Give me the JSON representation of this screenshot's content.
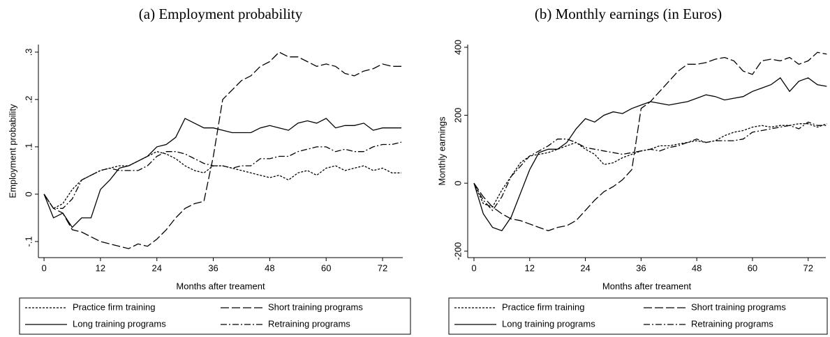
{
  "chart_data": [
    {
      "type": "line",
      "title": "(a) Employment probability",
      "x_label": "Months after treament",
      "y_label": "Employment probability",
      "x": [
        0,
        2,
        4,
        6,
        8,
        10,
        12,
        14,
        16,
        18,
        20,
        22,
        24,
        26,
        28,
        30,
        32,
        34,
        36,
        38,
        40,
        42,
        44,
        46,
        48,
        50,
        52,
        54,
        56,
        58,
        60,
        62,
        64,
        66,
        68,
        70,
        72,
        74,
        76
      ],
      "xlim": [
        -1.2,
        76.3
      ],
      "xticks": [
        0,
        12,
        24,
        36,
        48,
        60,
        72
      ],
      "ylim": [
        -0.134,
        0.316
      ],
      "yticks": [
        {
          "value": -0.1,
          "label": "-.1"
        },
        0,
        {
          "value": 0.1,
          "label": ".1"
        },
        {
          "value": 0.2,
          "label": ".2"
        },
        {
          "value": 0.3,
          "label": ".3"
        }
      ],
      "series": [
        {
          "name": "Practice firm training",
          "color": "#000000",
          "dash": "3,2",
          "values": [
            0,
            -0.03,
            -0.02,
            0.01,
            0.03,
            0.04,
            0.05,
            0.055,
            0.06,
            0.06,
            0.07,
            0.08,
            0.09,
            0.085,
            0.075,
            0.06,
            0.05,
            0.045,
            0.06,
            0.06,
            0.055,
            0.05,
            0.045,
            0.04,
            0.035,
            0.04,
            0.03,
            0.045,
            0.05,
            0.04,
            0.055,
            0.06,
            0.05,
            0.055,
            0.06,
            0.05,
            0.055,
            0.045,
            0.045
          ]
        },
        {
          "name": "Short training programs",
          "color": "#000000",
          "dash": "12,4",
          "values": [
            0,
            -0.03,
            -0.04,
            -0.075,
            -0.08,
            -0.09,
            -0.1,
            -0.105,
            -0.11,
            -0.115,
            -0.105,
            -0.11,
            -0.095,
            -0.075,
            -0.05,
            -0.03,
            -0.02,
            -0.015,
            0.08,
            0.2,
            0.22,
            0.24,
            0.25,
            0.27,
            0.28,
            0.3,
            0.29,
            0.29,
            0.28,
            0.27,
            0.275,
            0.27,
            0.255,
            0.25,
            0.26,
            0.265,
            0.275,
            0.27,
            0.27
          ]
        },
        {
          "name": "Long training programs",
          "color": "#000000",
          "dash": "none",
          "values": [
            0,
            -0.05,
            -0.04,
            -0.07,
            -0.05,
            -0.05,
            0.01,
            0.03,
            0.055,
            0.06,
            0.07,
            0.08,
            0.1,
            0.105,
            0.12,
            0.16,
            0.15,
            0.14,
            0.14,
            0.135,
            0.13,
            0.13,
            0.13,
            0.14,
            0.145,
            0.14,
            0.135,
            0.15,
            0.155,
            0.15,
            0.16,
            0.14,
            0.145,
            0.145,
            0.15,
            0.135,
            0.14,
            0.14,
            0.14
          ]
        },
        {
          "name": "Retraining programs",
          "color": "#000000",
          "dash": "9,3,2,3",
          "values": [
            0,
            -0.03,
            -0.03,
            -0.01,
            0.03,
            0.04,
            0.05,
            0.055,
            0.05,
            0.05,
            0.05,
            0.06,
            0.08,
            0.09,
            0.09,
            0.085,
            0.075,
            0.065,
            0.06,
            0.06,
            0.055,
            0.06,
            0.06,
            0.075,
            0.075,
            0.08,
            0.08,
            0.09,
            0.095,
            0.1,
            0.1,
            0.09,
            0.095,
            0.09,
            0.09,
            0.1,
            0.105,
            0.105,
            0.11
          ]
        }
      ]
    },
    {
      "type": "line",
      "title": "(b) Monthly earnings (in Euros)",
      "x_label": "Months after treament",
      "y_label": "Monthly earnings",
      "x": [
        0,
        2,
        4,
        6,
        8,
        10,
        12,
        14,
        16,
        18,
        20,
        22,
        24,
        26,
        28,
        30,
        32,
        34,
        36,
        38,
        40,
        42,
        44,
        46,
        48,
        50,
        52,
        54,
        56,
        58,
        60,
        62,
        64,
        66,
        68,
        70,
        72,
        74,
        76
      ],
      "xlim": [
        -1.35,
        75.8
      ],
      "xticks": [
        0,
        12,
        24,
        36,
        48,
        60,
        72
      ],
      "ylim": [
        -219,
        408
      ],
      "yticks": [
        -200,
        0,
        200,
        400
      ],
      "series": [
        {
          "name": "Practice firm training",
          "color": "#000000",
          "dash": "3,2",
          "values": [
            0,
            -60,
            -70,
            -20,
            20,
            60,
            80,
            85,
            90,
            100,
            110,
            120,
            100,
            85,
            55,
            60,
            75,
            85,
            95,
            100,
            110,
            110,
            115,
            120,
            125,
            120,
            125,
            140,
            150,
            155,
            165,
            170,
            165,
            170,
            170,
            175,
            175,
            165,
            175
          ]
        },
        {
          "name": "Short training programs",
          "color": "#000000",
          "dash": "12,4",
          "values": [
            0,
            -40,
            -70,
            -90,
            -105,
            -110,
            -120,
            -130,
            -140,
            -130,
            -125,
            -110,
            -80,
            -50,
            -25,
            -10,
            10,
            40,
            220,
            240,
            270,
            300,
            330,
            350,
            350,
            355,
            365,
            370,
            360,
            330,
            320,
            360,
            365,
            360,
            370,
            350,
            360,
            385,
            380
          ]
        },
        {
          "name": "Long training programs",
          "color": "#000000",
          "dash": "none",
          "values": [
            0,
            -90,
            -130,
            -140,
            -100,
            -30,
            40,
            90,
            100,
            100,
            120,
            160,
            190,
            180,
            200,
            210,
            205,
            220,
            230,
            240,
            235,
            230,
            235,
            240,
            250,
            260,
            255,
            245,
            250,
            255,
            270,
            280,
            290,
            310,
            270,
            300,
            310,
            290,
            285
          ]
        },
        {
          "name": "Retraining programs",
          "color": "#000000",
          "dash": "9,3,2,3",
          "values": [
            0,
            -50,
            -80,
            -40,
            20,
            50,
            80,
            95,
            110,
            130,
            130,
            120,
            105,
            100,
            95,
            90,
            85,
            90,
            95,
            100,
            95,
            105,
            110,
            120,
            130,
            120,
            125,
            125,
            125,
            130,
            150,
            155,
            160,
            165,
            170,
            160,
            180,
            170,
            170
          ]
        }
      ]
    }
  ]
}
